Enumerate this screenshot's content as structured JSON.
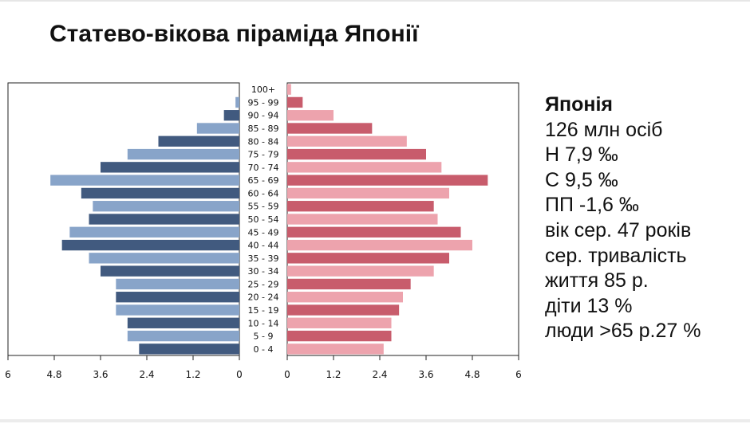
{
  "slide": {
    "title": "Статево-вікова піраміда Японії"
  },
  "info": {
    "title": "Японія",
    "lines": [
      "126 млн осіб",
      "Н 7,9 ‰",
      "С 9,5 ‰",
      "ПП -1,6 ‰",
      "вік сер. 47 років",
      "сер. тривалість",
      "життя 85 р.",
      "діти 13 %",
      "люди >65 р.27 %"
    ]
  },
  "chart_data": {
    "type": "bar",
    "orientation": "horizontal",
    "categories": [
      "100+",
      "95 - 99",
      "90 - 94",
      "85 - 89",
      "80 - 84",
      "75 - 79",
      "70 - 74",
      "65 - 69",
      "60 - 64",
      "55 - 59",
      "50 - 54",
      "45 - 49",
      "40 - 44",
      "35 - 39",
      "30 - 34",
      "25 - 29",
      "20 - 24",
      "15 - 19",
      "10 - 14",
      "5 - 9",
      "0 - 4"
    ],
    "series": [
      {
        "side": "left",
        "values": [
          0.0,
          0.1,
          0.4,
          1.1,
          2.1,
          2.9,
          3.6,
          4.9,
          4.1,
          3.8,
          3.9,
          4.4,
          4.6,
          3.9,
          3.6,
          3.2,
          3.2,
          3.2,
          2.9,
          2.9,
          2.6
        ]
      },
      {
        "side": "right",
        "values": [
          0.1,
          0.4,
          1.2,
          2.2,
          3.1,
          3.6,
          4.0,
          5.2,
          4.2,
          3.8,
          3.9,
          4.5,
          4.8,
          4.2,
          3.8,
          3.2,
          3.0,
          2.9,
          2.7,
          2.7,
          2.5
        ]
      }
    ],
    "xlim": [
      0,
      6
    ],
    "xticks_left": [
      "6",
      "4.8",
      "3.6",
      "2.4",
      "1.2",
      "0"
    ],
    "xticks_right": [
      "0",
      "1.2",
      "2.4",
      "3.6",
      "4.8",
      "6"
    ],
    "colors": {
      "left_dark": "#415a7f",
      "left_light": "#88a4c9",
      "right_dark": "#c85c6c",
      "right_light": "#eda3ad"
    }
  }
}
